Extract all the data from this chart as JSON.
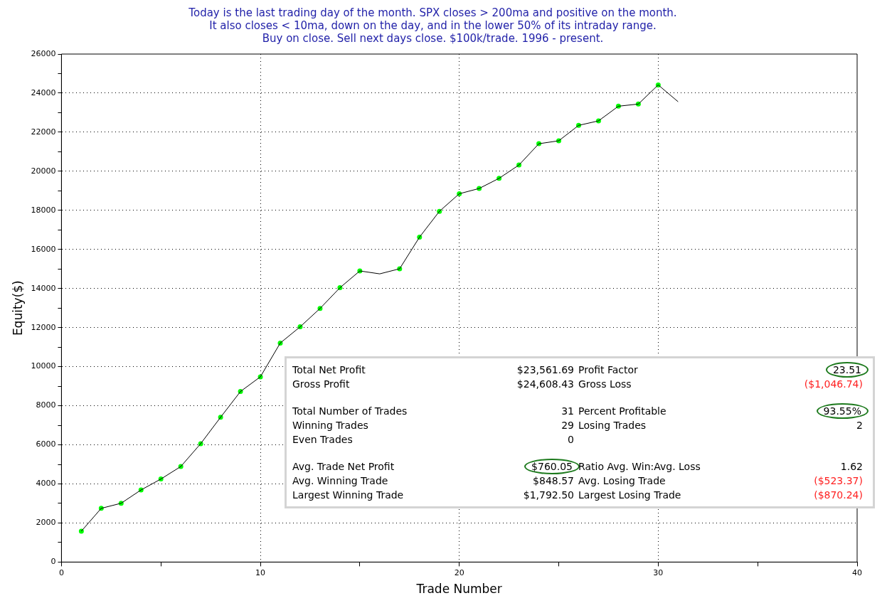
{
  "chart_data": {
    "type": "line",
    "title": "Today is the last trading day of the month. SPX closes > 200ma and positive on the month.\nIt also closes < 10ma, down on the day, and in the lower 50% of its intraday range.\nBuy on close. Sell next days close. $100k/trade. 1996 - present.",
    "xlabel": "Trade Number",
    "ylabel": "Equity($)",
    "x": [
      1,
      2,
      3,
      4,
      5,
      6,
      7,
      8,
      9,
      10,
      11,
      12,
      13,
      14,
      15,
      16,
      17,
      18,
      19,
      20,
      21,
      22,
      23,
      24,
      25,
      26,
      27,
      28,
      29,
      30,
      31
    ],
    "series": [
      {
        "color": "#000000",
        "marker": "none",
        "values": [
          1580,
          2750,
          3010,
          3690,
          4250,
          4890,
          6060,
          7410,
          8730,
          9480,
          11210,
          12040,
          12980,
          14040,
          14900,
          14750,
          15010,
          16630,
          17950,
          18850,
          19120,
          19640,
          20320,
          21410,
          21560,
          22350,
          22580,
          23330,
          23440,
          24420,
          23560
        ]
      },
      {
        "type": "scatter",
        "color": "#00ff00",
        "marker": "circle",
        "values": [
          1580,
          2750,
          3010,
          3690,
          4250,
          4890,
          6060,
          7410,
          8730,
          9480,
          11210,
          12040,
          12980,
          14040,
          14900,
          null,
          15010,
          16630,
          17950,
          18850,
          19120,
          19640,
          20320,
          21410,
          21560,
          22350,
          22580,
          23330,
          23440,
          24420,
          null
        ]
      }
    ],
    "xlim": [
      0,
      40
    ],
    "xticks": [
      0,
      {
        "value": 5,
        "label": null
      },
      10,
      {
        "value": 15,
        "label": null
      },
      20,
      {
        "value": 25,
        "label": null
      },
      30,
      {
        "value": 35,
        "label": null
      },
      40
    ],
    "ylim": [
      0,
      26000
    ],
    "yticks": [
      0,
      {
        "value": 1000,
        "label": null
      },
      2000,
      {
        "value": 3000,
        "label": null
      },
      4000,
      {
        "value": 5000,
        "label": null
      },
      6000,
      {
        "value": 7000,
        "label": null
      },
      8000,
      {
        "value": 9000,
        "label": null
      },
      10000,
      {
        "value": 11000,
        "label": null
      },
      12000,
      {
        "value": 13000,
        "label": null
      },
      14000,
      {
        "value": 15000,
        "label": null
      },
      16000,
      {
        "value": 17000,
        "label": null
      },
      18000,
      {
        "value": 19000,
        "label": null
      },
      20000,
      {
        "value": 21000,
        "label": null
      },
      22000,
      {
        "value": 23000,
        "label": null
      },
      24000,
      {
        "value": 25000,
        "label": null
      },
      26000
    ],
    "grid": true,
    "legend": false,
    "annotations": [
      "Total Net Profit",
      "$23,561.69",
      "Profit Factor",
      "23.51",
      "Gross Profit",
      "$24,608.43",
      "Gross Loss",
      "($1,046.74)",
      "Total Number of Trades",
      "31",
      "Percent Profitable",
      "93.55%",
      "Winning Trades",
      "29",
      "Losing Trades",
      "2",
      "Even Trades",
      "0",
      "Avg. Trade Net Profit",
      "$760.05",
      "Ratio Avg. Win:Avg. Loss",
      "1.62",
      "Avg. Winning Trade",
      "$848.57",
      "Avg. Losing Trade",
      "($523.37)",
      "Largest Winning Trade",
      "$1,792.50",
      "Largest Losing Trade",
      "($870.24)"
    ]
  }
}
